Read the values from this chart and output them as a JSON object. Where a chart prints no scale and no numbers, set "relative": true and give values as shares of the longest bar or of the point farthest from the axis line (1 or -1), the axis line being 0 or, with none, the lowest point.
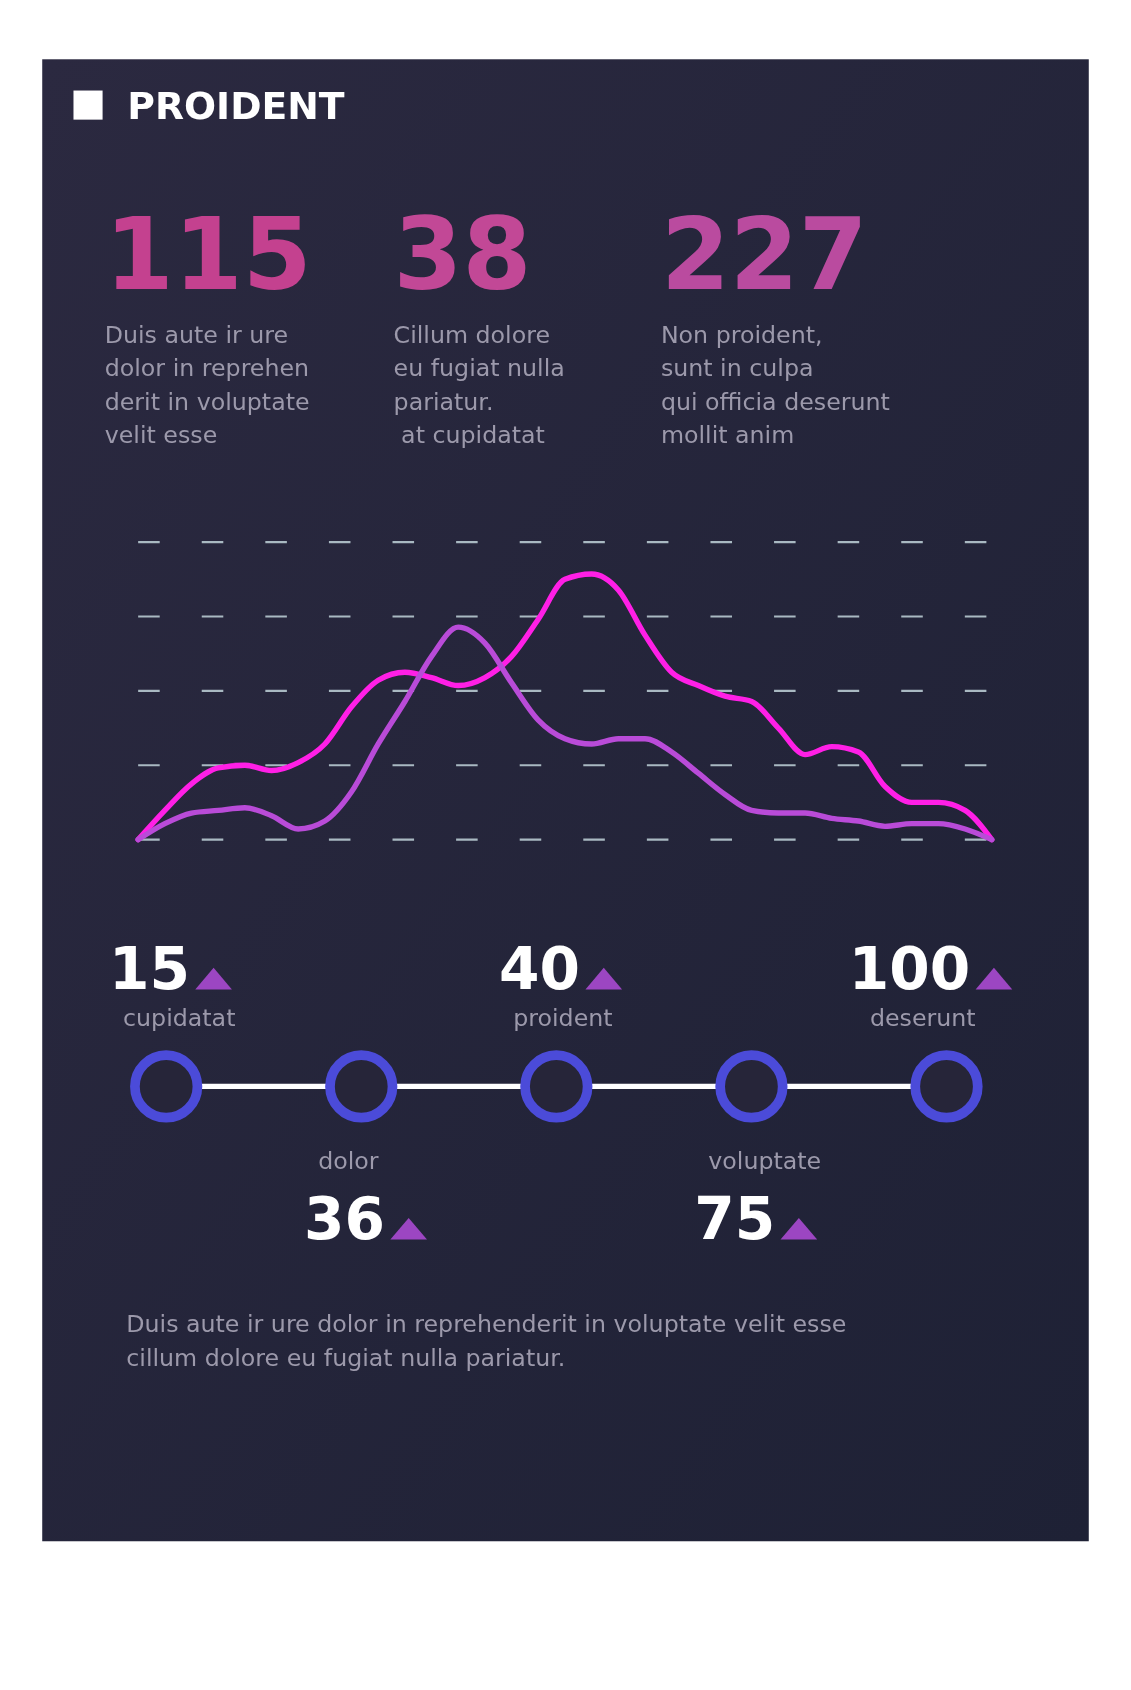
{
  "chart_data": [
    {
      "type": "other",
      "title": "PROIDENT",
      "categories": [
        "Duis aute ir ure\ndolor in reprehen\nderit in voluptate\nvelit esse",
        "Cillum dolore\neu fugiat nulla\npariatur.\n at cupidatat",
        "Non proident,\nsunt in culpa\nqui officia deserunt\nmollit anim"
      ],
      "values": [
        115,
        38,
        227
      ],
      "data_labels": true,
      "colors": [
        "#c4418f",
        "#c24896",
        "#ba4b9f"
      ]
    },
    {
      "type": "line",
      "relative": true,
      "grid": true,
      "categories": [
        null,
        null,
        null,
        null,
        null,
        null,
        null,
        null,
        null,
        null,
        null,
        null,
        null,
        null,
        null,
        null,
        null,
        null,
        null,
        null,
        null,
        null,
        null,
        null,
        null,
        null,
        null,
        null,
        null,
        null,
        null,
        null,
        null
      ],
      "series": [
        {
          "color": "#ff1fe6",
          "values": [
            0,
            0.11,
            0.21,
            0.27,
            0.28,
            0.26,
            0.29,
            0.36,
            0.5,
            0.6,
            0.63,
            0.61,
            0.58,
            0.61,
            0.69,
            0.83,
            0.98,
            1,
            0.94,
            0.77,
            0.63,
            0.58,
            0.54,
            0.52,
            0.42,
            0.32,
            0.35,
            0.33,
            0.2,
            0.14,
            0.14,
            0.11,
            0
          ]
        },
        {
          "color": "#b94bd8",
          "values": [
            0,
            0.06,
            0.1,
            0.11,
            0.12,
            0.09,
            0.04,
            0.07,
            0.18,
            0.36,
            0.52,
            0.69,
            0.8,
            0.74,
            0.59,
            0.45,
            0.38,
            0.36,
            0.38,
            0.38,
            0.33,
            0.25,
            0.17,
            0.11,
            0.1,
            0.1,
            0.08,
            0.07,
            0.05,
            0.06,
            0.06,
            0.04,
            0
          ]
        }
      ]
    },
    {
      "type": "other",
      "categories": [
        "cupidatat",
        "dolor",
        "proident",
        "voluptate",
        "deserunt"
      ],
      "values": [
        15,
        36,
        40,
        75,
        100
      ],
      "data_labels": true,
      "color": "#4b4bd9",
      "annotations": [
        "Duis aute ir ure dolor in reprehenderit in voluptate velit esse\ncillum dolore eu fugiat nulla pariatur."
      ]
    }
  ]
}
